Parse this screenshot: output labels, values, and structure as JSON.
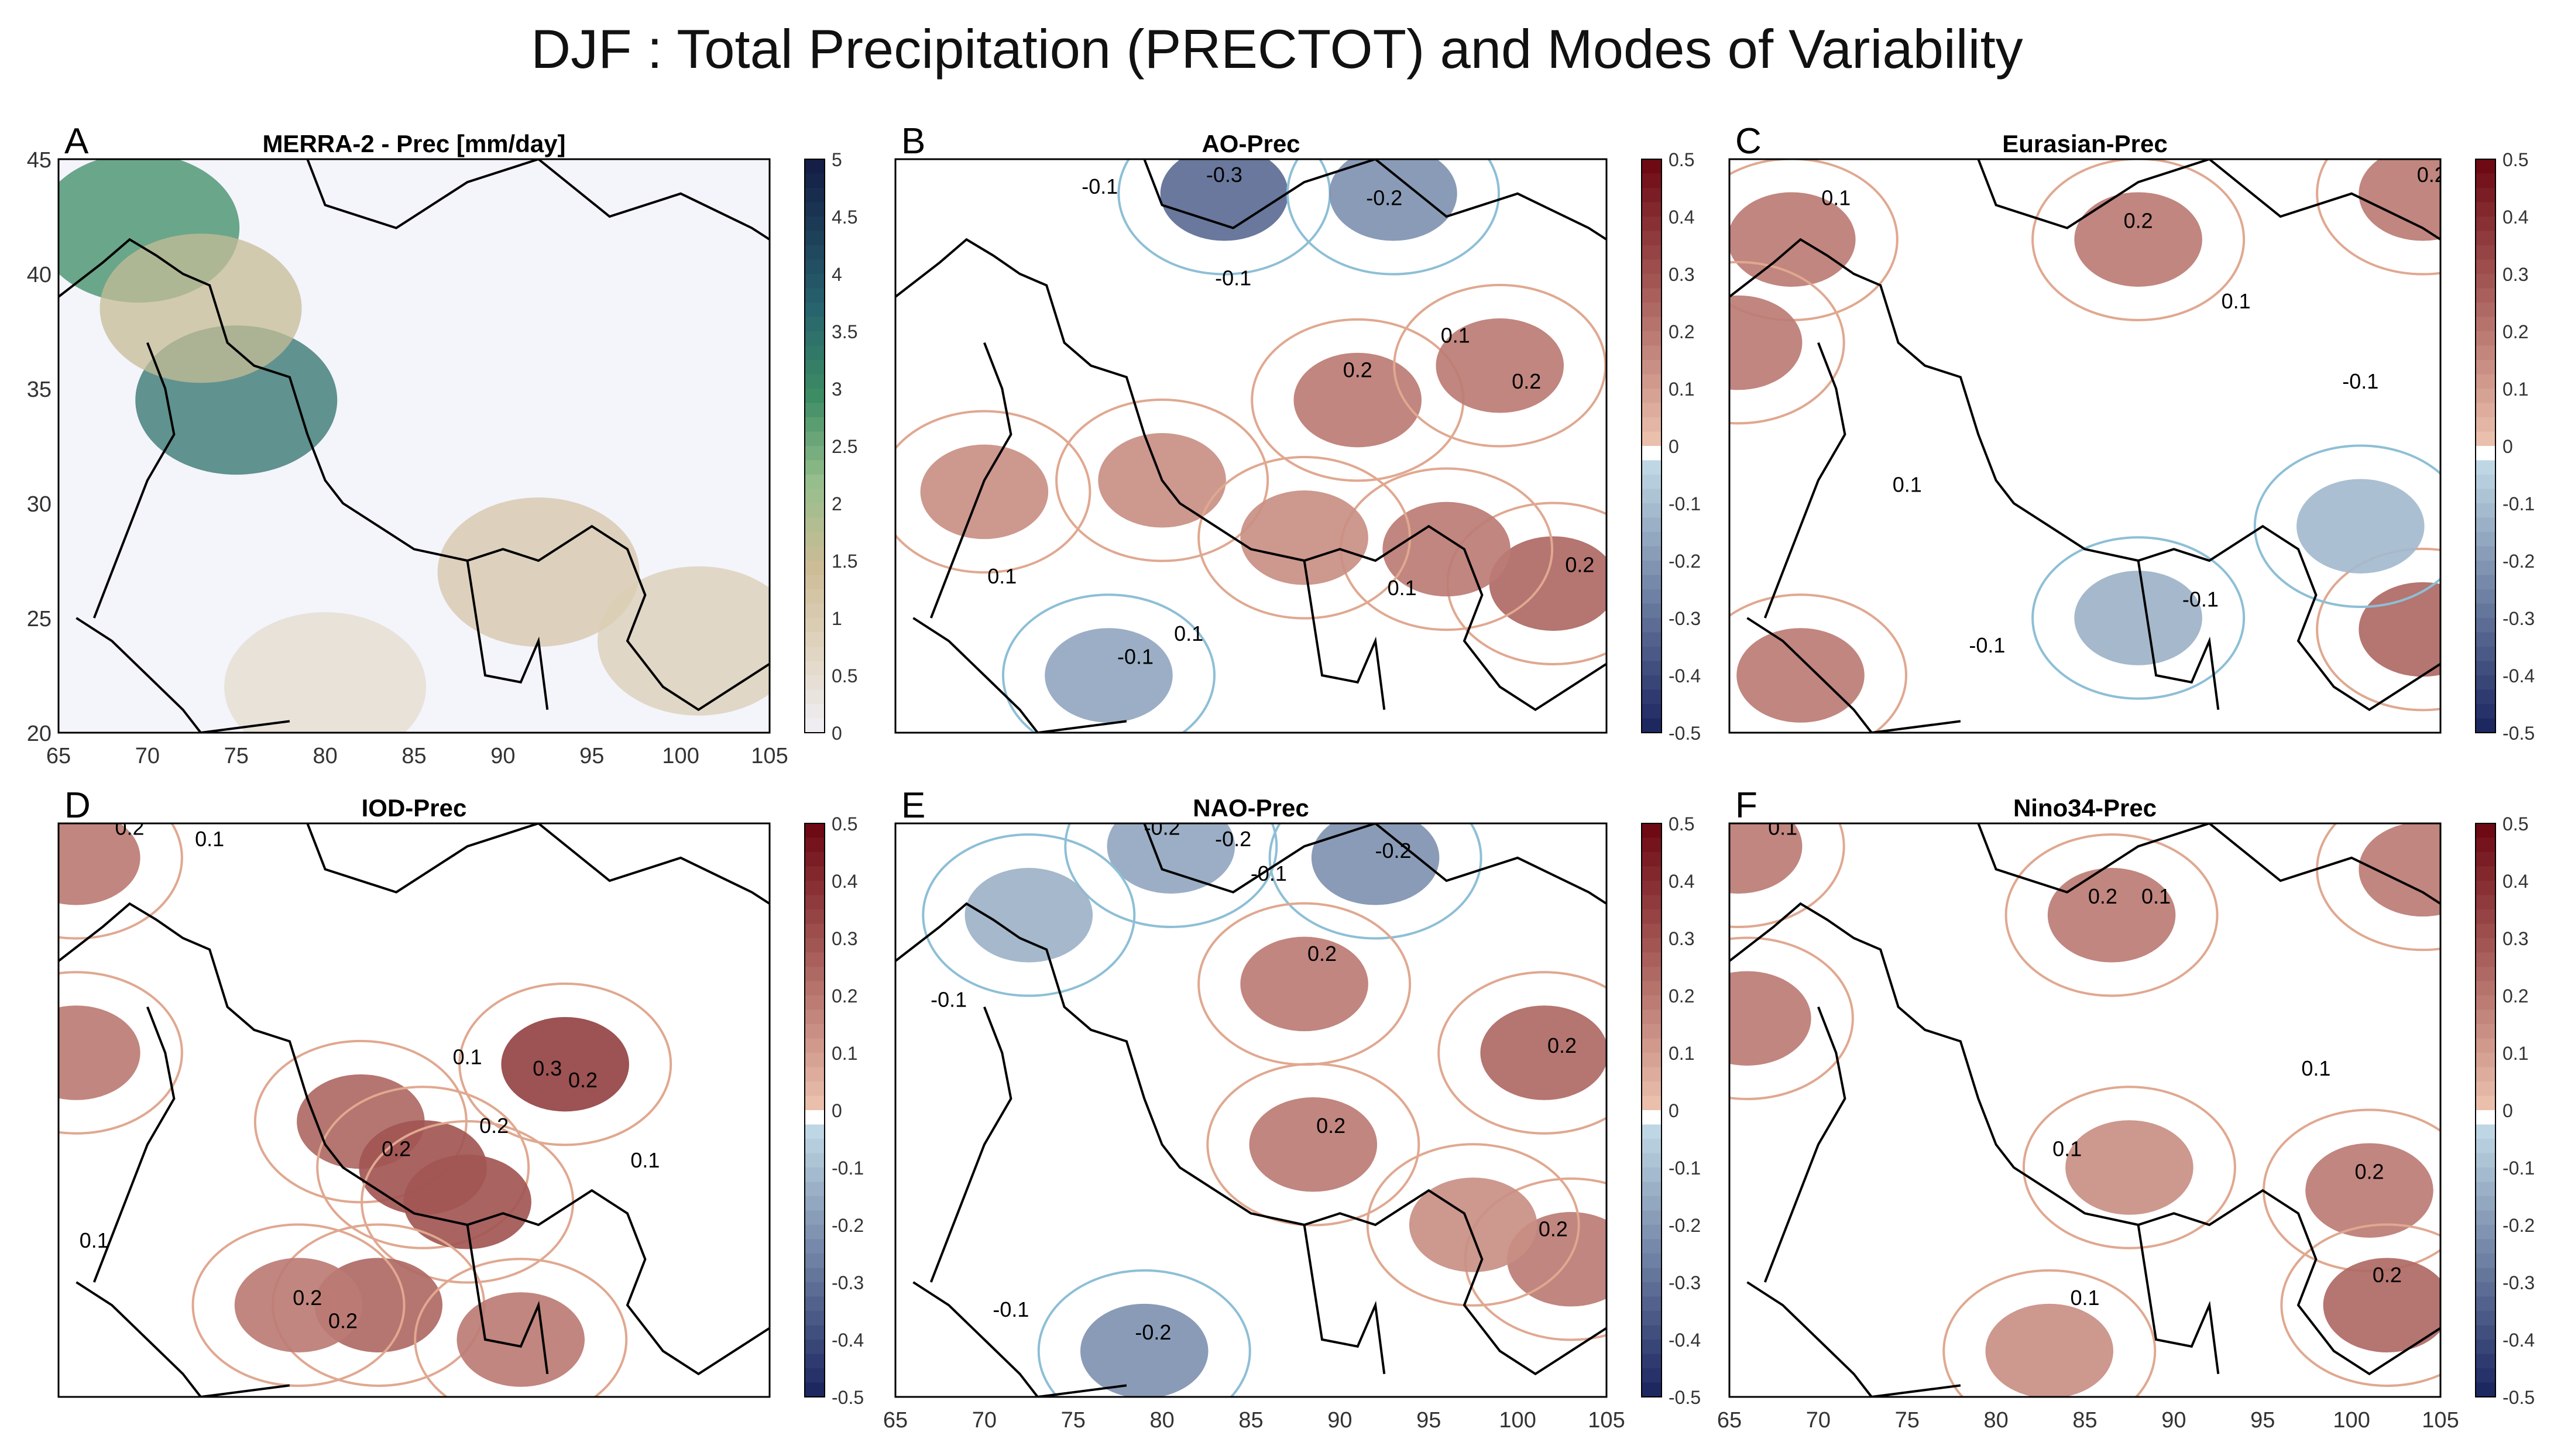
{
  "figure": {
    "title": "DJF : Total Precipitation (PRECTOT) and Modes of Variability"
  },
  "colors": {
    "positive": "#c8552f",
    "negative": "#4a92c4",
    "strong_negative": "#1f4fa8",
    "contour_pos": "#e0a890",
    "contour_neg": "#8dbfd6",
    "map_bg": "#f4f4fb"
  },
  "chart_data": [
    {
      "panel": "A",
      "type": "heatmap",
      "title": "MERRA-2 - Prec [mm/day]",
      "xlim": [
        65,
        105
      ],
      "ylim": [
        20,
        45
      ],
      "x_ticks": [
        "65",
        "70",
        "75",
        "80",
        "85",
        "90",
        "95",
        "100",
        "105"
      ],
      "y_ticks": [
        "45",
        "40",
        "35",
        "30",
        "25",
        "20"
      ],
      "colorbar_ticks": [
        "5",
        "4.5",
        "4",
        "3.5",
        "3",
        "2.5",
        "2",
        "1.5",
        "1",
        "0.5",
        "0"
      ],
      "colorbar_range": [
        0,
        5
      ],
      "features": [
        {
          "lon": 69.5,
          "lat": 42.0,
          "value": 3.0
        },
        {
          "lon": 75.0,
          "lat": 34.5,
          "value": 3.5
        },
        {
          "lon": 73.0,
          "lat": 38.5,
          "value": 1.6
        },
        {
          "lon": 92.0,
          "lat": 27.0,
          "value": 1.2
        },
        {
          "lon": 101.0,
          "lat": 24.0,
          "value": 1.0
        },
        {
          "lon": 80.0,
          "lat": 22.0,
          "value": 0.6
        }
      ],
      "labels": []
    },
    {
      "panel": "B",
      "type": "heatmap",
      "title": "AO-Prec",
      "xlim": [
        65,
        105
      ],
      "ylim": [
        20,
        45
      ],
      "x_ticks": [],
      "y_ticks": [],
      "colorbar_ticks": [
        "0.5",
        "0.4",
        "0.3",
        "0.2",
        "0.1",
        "0",
        "-0.1",
        "-0.2",
        "-0.3",
        "-0.4",
        "-0.5"
      ],
      "colorbar_range": [
        -0.5,
        0.5
      ],
      "features": [
        {
          "lon": 83.5,
          "lat": 43.5,
          "value": -0.3
        },
        {
          "lon": 93.0,
          "lat": 43.5,
          "value": -0.2
        },
        {
          "lon": 77.0,
          "lat": 22.5,
          "value": -0.15
        },
        {
          "lon": 91.0,
          "lat": 34.5,
          "value": 0.2
        },
        {
          "lon": 99.0,
          "lat": 36.0,
          "value": 0.2
        },
        {
          "lon": 102.0,
          "lat": 26.5,
          "value": 0.25
        },
        {
          "lon": 96.0,
          "lat": 28.0,
          "value": 0.2
        },
        {
          "lon": 80.0,
          "lat": 31.0,
          "value": 0.15
        },
        {
          "lon": 88.0,
          "lat": 28.5,
          "value": 0.15
        },
        {
          "lon": 70.0,
          "lat": 30.5,
          "value": 0.15
        }
      ],
      "labels": [
        {
          "text": "-0.3",
          "lon": 83.5,
          "lat": 44.0
        },
        {
          "text": "-0.1",
          "lon": 76.5,
          "lat": 43.5
        },
        {
          "text": "-0.2",
          "lon": 92.5,
          "lat": 43.0
        },
        {
          "text": "-0.1",
          "lon": 84.0,
          "lat": 39.5
        },
        {
          "text": "-0.1",
          "lon": 78.5,
          "lat": 23.0
        },
        {
          "text": "0.2",
          "lon": 91.0,
          "lat": 35.5
        },
        {
          "text": "0.2",
          "lon": 100.5,
          "lat": 35.0
        },
        {
          "text": "0.1",
          "lon": 96.5,
          "lat": 37.0
        },
        {
          "text": "0.2",
          "lon": 103.5,
          "lat": 27.0
        },
        {
          "text": "0.1",
          "lon": 71.0,
          "lat": 26.5
        },
        {
          "text": "0.1",
          "lon": 93.5,
          "lat": 26.0
        },
        {
          "text": "0.1",
          "lon": 81.5,
          "lat": 24.0
        }
      ]
    },
    {
      "panel": "C",
      "type": "heatmap",
      "title": "Eurasian-Prec",
      "xlim": [
        65,
        105
      ],
      "ylim": [
        20,
        45
      ],
      "x_ticks": [],
      "y_ticks": [],
      "colorbar_ticks": [
        "0.5",
        "0.4",
        "0.3",
        "0.2",
        "0.1",
        "0",
        "-0.1",
        "-0.2",
        "-0.3",
        "-0.4",
        "-0.5"
      ],
      "colorbar_range": [
        -0.5,
        0.5
      ],
      "features": [
        {
          "lon": 68.5,
          "lat": 41.5,
          "value": 0.2
        },
        {
          "lon": 65.5,
          "lat": 37.0,
          "value": 0.2
        },
        {
          "lon": 88.0,
          "lat": 41.5,
          "value": 0.2
        },
        {
          "lon": 104.0,
          "lat": 43.5,
          "value": 0.2
        },
        {
          "lon": 104.0,
          "lat": 24.5,
          "value": 0.25
        },
        {
          "lon": 69.0,
          "lat": 22.5,
          "value": 0.2
        },
        {
          "lon": 88.0,
          "lat": 25.0,
          "value": -0.12
        },
        {
          "lon": 100.5,
          "lat": 29.0,
          "value": -0.1
        }
      ],
      "labels": [
        {
          "text": "0.1",
          "lon": 71.0,
          "lat": 43.0
        },
        {
          "text": "0.2",
          "lon": 88.0,
          "lat": 42.0
        },
        {
          "text": "0.1",
          "lon": 93.5,
          "lat": 38.5
        },
        {
          "text": "-0.1",
          "lon": 100.5,
          "lat": 35.0
        },
        {
          "text": "-0.1",
          "lon": 91.5,
          "lat": 25.5
        },
        {
          "text": "-0.1",
          "lon": 79.5,
          "lat": 23.5
        },
        {
          "text": "0.1",
          "lon": 75.0,
          "lat": 30.5
        },
        {
          "text": "0.2",
          "lon": 104.5,
          "lat": 44.0
        }
      ]
    },
    {
      "panel": "D",
      "type": "heatmap",
      "title": "IOD-Prec",
      "xlim": [
        65,
        105
      ],
      "ylim": [
        20,
        45
      ],
      "x_ticks": [],
      "y_ticks": [],
      "colorbar_ticks": [
        "0.5",
        "0.4",
        "0.3",
        "0.2",
        "0.1",
        "0",
        "-0.1",
        "-0.2",
        "-0.3",
        "-0.4",
        "-0.5"
      ],
      "colorbar_range": [
        -0.5,
        0.5
      ],
      "features": [
        {
          "lon": 82.0,
          "lat": 32.0,
          "value": 0.25
        },
        {
          "lon": 85.5,
          "lat": 30.0,
          "value": 0.3
        },
        {
          "lon": 88.0,
          "lat": 28.5,
          "value": 0.3
        },
        {
          "lon": 93.5,
          "lat": 34.5,
          "value": 0.35
        },
        {
          "lon": 83.0,
          "lat": 24.0,
          "value": 0.25
        },
        {
          "lon": 78.5,
          "lat": 24.0,
          "value": 0.2
        },
        {
          "lon": 66.0,
          "lat": 43.5,
          "value": 0.2
        },
        {
          "lon": 66.0,
          "lat": 35.0,
          "value": 0.2
        },
        {
          "lon": 91.0,
          "lat": 22.5,
          "value": 0.2
        }
      ],
      "labels": [
        {
          "text": "0.2",
          "lon": 69.0,
          "lat": 44.5
        },
        {
          "text": "0.1",
          "lon": 73.5,
          "lat": 44.0
        },
        {
          "text": "0.1",
          "lon": 88.0,
          "lat": 34.5
        },
        {
          "text": "0.3",
          "lon": 92.5,
          "lat": 34.0
        },
        {
          "text": "0.2",
          "lon": 94.5,
          "lat": 33.5
        },
        {
          "text": "0.2",
          "lon": 89.5,
          "lat": 31.5
        },
        {
          "text": "0.2",
          "lon": 84.0,
          "lat": 30.5
        },
        {
          "text": "0.2",
          "lon": 79.0,
          "lat": 24.0
        },
        {
          "text": "0.2",
          "lon": 81.0,
          "lat": 23.0
        },
        {
          "text": "0.1",
          "lon": 67.0,
          "lat": 26.5
        },
        {
          "text": "0.1",
          "lon": 98.0,
          "lat": 30.0
        }
      ]
    },
    {
      "panel": "E",
      "type": "heatmap",
      "title": "NAO-Prec",
      "xlim": [
        65,
        105
      ],
      "ylim": [
        20,
        45
      ],
      "x_ticks": [
        "65",
        "70",
        "75",
        "80",
        "85",
        "90",
        "95",
        "100",
        "105"
      ],
      "y_ticks": [],
      "colorbar_ticks": [
        "0.5",
        "0.4",
        "0.3",
        "0.2",
        "0.1",
        "0",
        "-0.1",
        "-0.2",
        "-0.3",
        "-0.4",
        "-0.5"
      ],
      "colorbar_range": [
        -0.5,
        0.5
      ],
      "features": [
        {
          "lon": 80.5,
          "lat": 44.0,
          "value": -0.15
        },
        {
          "lon": 92.0,
          "lat": 43.5,
          "value": -0.2
        },
        {
          "lon": 72.5,
          "lat": 41.0,
          "value": -0.12
        },
        {
          "lon": 79.0,
          "lat": 22.0,
          "value": -0.2
        },
        {
          "lon": 88.0,
          "lat": 38.0,
          "value": 0.2
        },
        {
          "lon": 101.5,
          "lat": 35.0,
          "value": 0.25
        },
        {
          "lon": 88.5,
          "lat": 31.0,
          "value": 0.2
        },
        {
          "lon": 103.0,
          "lat": 26.0,
          "value": 0.2
        },
        {
          "lon": 97.5,
          "lat": 27.5,
          "value": 0.15
        }
      ],
      "labels": [
        {
          "text": "-0.2",
          "lon": 80.0,
          "lat": 44.5
        },
        {
          "text": "-0.2",
          "lon": 84.0,
          "lat": 44.0
        },
        {
          "text": "-0.1",
          "lon": 86.0,
          "lat": 42.5
        },
        {
          "text": "-0.2",
          "lon": 93.0,
          "lat": 43.5
        },
        {
          "text": "-0.1",
          "lon": 68.0,
          "lat": 37.0
        },
        {
          "text": "0.2",
          "lon": 89.0,
          "lat": 39.0
        },
        {
          "text": "0.2",
          "lon": 89.5,
          "lat": 31.5
        },
        {
          "text": "0.2",
          "lon": 102.5,
          "lat": 35.0
        },
        {
          "text": "0.2",
          "lon": 102.0,
          "lat": 27.0
        },
        {
          "text": "-0.2",
          "lon": 79.5,
          "lat": 22.5
        },
        {
          "text": "-0.1",
          "lon": 71.5,
          "lat": 23.5
        }
      ]
    },
    {
      "panel": "F",
      "type": "heatmap",
      "title": "Nino34-Prec",
      "xlim": [
        65,
        105
      ],
      "ylim": [
        20,
        45
      ],
      "x_ticks": [
        "65",
        "70",
        "75",
        "80",
        "85",
        "90",
        "95",
        "100",
        "105"
      ],
      "y_ticks": [],
      "colorbar_ticks": [
        "0.5",
        "0.4",
        "0.3",
        "0.2",
        "0.1",
        "0",
        "-0.1",
        "-0.2",
        "-0.3",
        "-0.4",
        "-0.5"
      ],
      "colorbar_range": [
        -0.5,
        0.5
      ],
      "features": [
        {
          "lon": 65.5,
          "lat": 44.0,
          "value": 0.2
        },
        {
          "lon": 66.0,
          "lat": 36.5,
          "value": 0.2
        },
        {
          "lon": 86.5,
          "lat": 41.0,
          "value": 0.2
        },
        {
          "lon": 104.0,
          "lat": 43.0,
          "value": 0.2
        },
        {
          "lon": 101.0,
          "lat": 29.0,
          "value": 0.2
        },
        {
          "lon": 102.0,
          "lat": 24.0,
          "value": 0.25
        },
        {
          "lon": 83.0,
          "lat": 22.0,
          "value": 0.15
        },
        {
          "lon": 87.5,
          "lat": 30.0,
          "value": 0.15
        }
      ],
      "labels": [
        {
          "text": "0.1",
          "lon": 68.0,
          "lat": 44.5
        },
        {
          "text": "0.2",
          "lon": 86.0,
          "lat": 41.5
        },
        {
          "text": "0.1",
          "lon": 89.0,
          "lat": 41.5
        },
        {
          "text": "0.1",
          "lon": 84.0,
          "lat": 30.5
        },
        {
          "text": "0.2",
          "lon": 101.0,
          "lat": 29.5
        },
        {
          "text": "0.2",
          "lon": 102.0,
          "lat": 25.0
        },
        {
          "text": "0.1",
          "lon": 85.0,
          "lat": 24.0
        },
        {
          "text": "0.1",
          "lon": 98.0,
          "lat": 34.0
        }
      ]
    }
  ]
}
